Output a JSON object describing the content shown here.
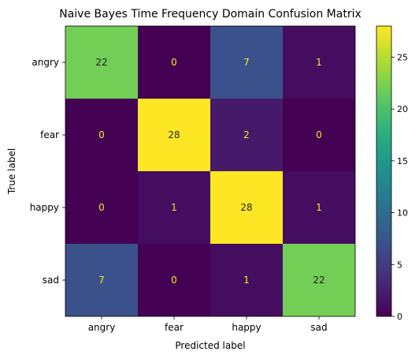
{
  "chart_data": {
    "type": "heatmap",
    "title": "Naive Bayes Time Frequency Domain Confusion Matrix",
    "xlabel": "Predicted label",
    "ylabel": "True label",
    "x_categories": [
      "angry",
      "fear",
      "happy",
      "sad"
    ],
    "y_categories": [
      "angry",
      "fear",
      "happy",
      "sad"
    ],
    "values": [
      [
        22,
        0,
        7,
        1
      ],
      [
        0,
        28,
        2,
        0
      ],
      [
        0,
        1,
        28,
        1
      ],
      [
        7,
        0,
        1,
        22
      ]
    ],
    "colormap": "viridis",
    "vmin": 0,
    "vmax": 28,
    "colorbar_ticks": [
      0,
      5,
      10,
      15,
      20,
      25
    ],
    "grid": false,
    "text_colors": {
      "dark_cell": "#fde725",
      "light_cell": "#222222"
    }
  }
}
